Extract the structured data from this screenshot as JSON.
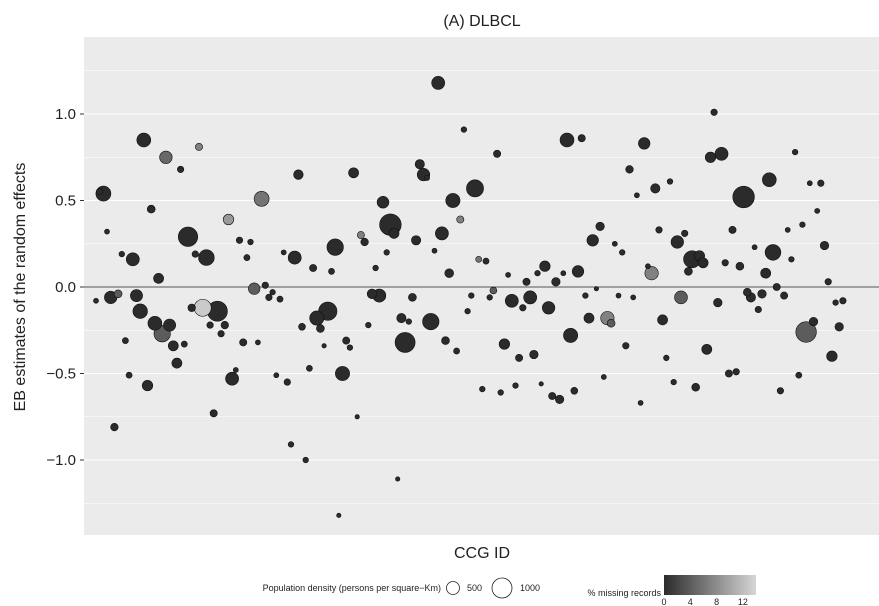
{
  "chart_data": {
    "type": "scatter",
    "title": "(A) DLBCL",
    "xlabel": "CCG ID",
    "ylabel": "EB estimates of the random effects",
    "ylim": [
      -1.38,
      1.45
    ],
    "yticks": [
      1.0,
      0.5,
      0.0,
      -0.5,
      -1.0
    ],
    "ytick_labels": [
      "1.0",
      "0.5",
      "0.0",
      "−0.5",
      "−1.0"
    ],
    "grid": true,
    "reference_line_y": 0,
    "x_index_range": [
      1,
      210
    ],
    "size_legend": {
      "title": "Population density (persons per square−Km)",
      "entries": [
        {
          "label": "500",
          "value": 500
        },
        {
          "label": "1000",
          "value": 1000
        }
      ]
    },
    "color_legend": {
      "title": "% missing records",
      "tick_labels": [
        "0",
        "4",
        "8",
        "12"
      ],
      "range": [
        0,
        14
      ],
      "colors": [
        "#2b2b2b",
        "#d6d6d6"
      ]
    },
    "points": [
      {
        "x": 1,
        "y": -0.08,
        "size": 30,
        "m": 0
      },
      {
        "x": 2,
        "y": 0.55,
        "size": 60,
        "m": 0
      },
      {
        "x": 3,
        "y": 0.54,
        "size": 450,
        "m": 0
      },
      {
        "x": 4,
        "y": 0.32,
        "size": 30,
        "m": 0
      },
      {
        "x": 5,
        "y": -0.06,
        "size": 300,
        "m": 0
      },
      {
        "x": 6,
        "y": -0.81,
        "size": 90,
        "m": 0
      },
      {
        "x": 7,
        "y": -0.04,
        "size": 100,
        "m": 4
      },
      {
        "x": 8,
        "y": 0.19,
        "size": 40,
        "m": 0
      },
      {
        "x": 9,
        "y": -0.31,
        "size": 50,
        "m": 0
      },
      {
        "x": 10,
        "y": -0.51,
        "size": 50,
        "m": 0
      },
      {
        "x": 11,
        "y": 0.16,
        "size": 330,
        "m": 0
      },
      {
        "x": 12,
        "y": -0.05,
        "size": 280,
        "m": 0
      },
      {
        "x": 13,
        "y": -0.14,
        "size": 420,
        "m": 0
      },
      {
        "x": 14,
        "y": 0.85,
        "size": 380,
        "m": 0
      },
      {
        "x": 15,
        "y": -0.57,
        "size": 200,
        "m": 0
      },
      {
        "x": 16,
        "y": 0.45,
        "size": 100,
        "m": 0
      },
      {
        "x": 17,
        "y": -0.21,
        "size": 380,
        "m": 0
      },
      {
        "x": 18,
        "y": 0.05,
        "size": 180,
        "m": 0
      },
      {
        "x": 19,
        "y": -0.27,
        "size": 550,
        "m": 4
      },
      {
        "x": 20,
        "y": 0.75,
        "size": 300,
        "m": 5
      },
      {
        "x": 21,
        "y": -0.22,
        "size": 280,
        "m": 0
      },
      {
        "x": 22,
        "y": -0.34,
        "size": 180,
        "m": 0
      },
      {
        "x": 23,
        "y": -0.44,
        "size": 180,
        "m": 0
      },
      {
        "x": 24,
        "y": 0.68,
        "size": 60,
        "m": 0
      },
      {
        "x": 25,
        "y": -0.33,
        "size": 50,
        "m": 0
      },
      {
        "x": 26,
        "y": 0.29,
        "size": 800,
        "m": 0
      },
      {
        "x": 27,
        "y": -0.12,
        "size": 90,
        "m": 0
      },
      {
        "x": 28,
        "y": 0.19,
        "size": 60,
        "m": 0
      },
      {
        "x": 29,
        "y": 0.81,
        "size": 80,
        "m": 7
      },
      {
        "x": 30,
        "y": -0.12,
        "size": 600,
        "m": 13
      },
      {
        "x": 31,
        "y": 0.17,
        "size": 500,
        "m": 0
      },
      {
        "x": 32,
        "y": -0.22,
        "size": 60,
        "m": 0
      },
      {
        "x": 33,
        "y": -0.73,
        "size": 80,
        "m": 0
      },
      {
        "x": 34,
        "y": -0.14,
        "size": 850,
        "m": 0
      },
      {
        "x": 35,
        "y": -0.27,
        "size": 60,
        "m": 0
      },
      {
        "x": 36,
        "y": -0.22,
        "size": 90,
        "m": 0
      },
      {
        "x": 37,
        "y": 0.39,
        "size": 200,
        "m": 9
      },
      {
        "x": 38,
        "y": -0.53,
        "size": 330,
        "m": 0
      },
      {
        "x": 39,
        "y": -0.48,
        "size": 30,
        "m": 0
      },
      {
        "x": 40,
        "y": 0.27,
        "size": 60,
        "m": 0
      },
      {
        "x": 41,
        "y": -0.32,
        "size": 80,
        "m": 0
      },
      {
        "x": 42,
        "y": 0.17,
        "size": 50,
        "m": 0
      },
      {
        "x": 43,
        "y": 0.26,
        "size": 40,
        "m": 0
      },
      {
        "x": 44,
        "y": -0.01,
        "size": 250,
        "m": 4
      },
      {
        "x": 45,
        "y": -0.32,
        "size": 30,
        "m": 0
      },
      {
        "x": 46,
        "y": 0.51,
        "size": 450,
        "m": 6
      },
      {
        "x": 47,
        "y": 0.01,
        "size": 60,
        "m": 0
      },
      {
        "x": 48,
        "y": -0.06,
        "size": 60,
        "m": 0
      },
      {
        "x": 49,
        "y": -0.03,
        "size": 40,
        "m": 0
      },
      {
        "x": 50,
        "y": -0.51,
        "size": 30,
        "m": 0
      },
      {
        "x": 51,
        "y": -0.07,
        "size": 50,
        "m": 0
      },
      {
        "x": 52,
        "y": 0.2,
        "size": 30,
        "m": 0
      },
      {
        "x": 53,
        "y": -0.55,
        "size": 60,
        "m": 0
      },
      {
        "x": 54,
        "y": -0.91,
        "size": 40,
        "m": 0
      },
      {
        "x": 55,
        "y": 0.17,
        "size": 330,
        "m": 0
      },
      {
        "x": 56,
        "y": 0.65,
        "size": 160,
        "m": 0
      },
      {
        "x": 57,
        "y": -0.23,
        "size": 70,
        "m": 0
      },
      {
        "x": 58,
        "y": -1.0,
        "size": 40,
        "m": 0
      },
      {
        "x": 59,
        "y": -0.47,
        "size": 50,
        "m": 0
      },
      {
        "x": 60,
        "y": 0.11,
        "size": 80,
        "m": 0
      },
      {
        "x": 61,
        "y": -0.18,
        "size": 400,
        "m": 0
      },
      {
        "x": 62,
        "y": -0.24,
        "size": 100,
        "m": 0
      },
      {
        "x": 63,
        "y": -0.34,
        "size": 20,
        "m": 0
      },
      {
        "x": 64,
        "y": -0.14,
        "size": 700,
        "m": 0
      },
      {
        "x": 65,
        "y": 0.09,
        "size": 50,
        "m": 0
      },
      {
        "x": 66,
        "y": 0.23,
        "size": 550,
        "m": 0
      },
      {
        "x": 67,
        "y": -1.32,
        "size": 20,
        "m": 0
      },
      {
        "x": 68,
        "y": -0.5,
        "size": 400,
        "m": 0
      },
      {
        "x": 69,
        "y": -0.31,
        "size": 80,
        "m": 0
      },
      {
        "x": 70,
        "y": -0.35,
        "size": 40,
        "m": 0
      },
      {
        "x": 71,
        "y": 0.66,
        "size": 180,
        "m": 0
      },
      {
        "x": 72,
        "y": -0.75,
        "size": 20,
        "m": 0
      },
      {
        "x": 73,
        "y": 0.3,
        "size": 80,
        "m": 7
      },
      {
        "x": 74,
        "y": 0.26,
        "size": 90,
        "m": 0
      },
      {
        "x": 75,
        "y": -0.22,
        "size": 40,
        "m": 0
      },
      {
        "x": 76,
        "y": -0.04,
        "size": 160,
        "m": 0
      },
      {
        "x": 77,
        "y": 0.11,
        "size": 40,
        "m": 0
      },
      {
        "x": 78,
        "y": -0.05,
        "size": 330,
        "m": 0
      },
      {
        "x": 79,
        "y": 0.49,
        "size": 260,
        "m": 0
      },
      {
        "x": 80,
        "y": 0.2,
        "size": 40,
        "m": 0
      },
      {
        "x": 81,
        "y": 0.36,
        "size": 1000,
        "m": 0
      },
      {
        "x": 82,
        "y": 0.31,
        "size": 180,
        "m": 0
      },
      {
        "x": 83,
        "y": -1.11,
        "size": 20,
        "m": 0
      },
      {
        "x": 84,
        "y": -0.18,
        "size": 150,
        "m": 0
      },
      {
        "x": 85,
        "y": -0.32,
        "size": 850,
        "m": 0
      },
      {
        "x": 86,
        "y": -0.2,
        "size": 40,
        "m": 0
      },
      {
        "x": 87,
        "y": -0.06,
        "size": 100,
        "m": 0
      },
      {
        "x": 88,
        "y": 0.27,
        "size": 150,
        "m": 0
      },
      {
        "x": 89,
        "y": 0.71,
        "size": 150,
        "m": 0
      },
      {
        "x": 90,
        "y": 0.65,
        "size": 300,
        "m": 0
      },
      {
        "x": 91,
        "y": 0.63,
        "size": 30,
        "m": 0
      },
      {
        "x": 92,
        "y": -0.2,
        "size": 550,
        "m": 0
      },
      {
        "x": 93,
        "y": 0.21,
        "size": 30,
        "m": 0
      },
      {
        "x": 94,
        "y": 1.18,
        "size": 330,
        "m": 0
      },
      {
        "x": 95,
        "y": 0.31,
        "size": 330,
        "m": 0
      },
      {
        "x": 96,
        "y": -0.31,
        "size": 100,
        "m": 0
      },
      {
        "x": 97,
        "y": 0.08,
        "size": 130,
        "m": 0
      },
      {
        "x": 98,
        "y": 0.5,
        "size": 400,
        "m": 0
      },
      {
        "x": 99,
        "y": -0.37,
        "size": 50,
        "m": 0
      },
      {
        "x": 100,
        "y": 0.39,
        "size": 80,
        "m": 7
      },
      {
        "x": 101,
        "y": 0.91,
        "size": 40,
        "m": 0
      },
      {
        "x": 102,
        "y": -0.14,
        "size": 40,
        "m": 0
      },
      {
        "x": 103,
        "y": -0.05,
        "size": 40,
        "m": 0
      },
      {
        "x": 104,
        "y": 0.57,
        "size": 600,
        "m": 0
      },
      {
        "x": 105,
        "y": 0.16,
        "size": 50,
        "m": 6
      },
      {
        "x": 106,
        "y": -0.59,
        "size": 40,
        "m": 0
      },
      {
        "x": 107,
        "y": 0.15,
        "size": 50,
        "m": 0
      },
      {
        "x": 108,
        "y": -0.06,
        "size": 40,
        "m": 0
      },
      {
        "x": 109,
        "y": -0.02,
        "size": 70,
        "m": 4
      },
      {
        "x": 110,
        "y": 0.77,
        "size": 80,
        "m": 0
      },
      {
        "x": 111,
        "y": -0.61,
        "size": 40,
        "m": 0
      },
      {
        "x": 112,
        "y": -0.33,
        "size": 200,
        "m": 0
      },
      {
        "x": 113,
        "y": 0.07,
        "size": 30,
        "m": 0
      },
      {
        "x": 114,
        "y": -0.08,
        "size": 330,
        "m": 0
      },
      {
        "x": 115,
        "y": -0.57,
        "size": 40,
        "m": 0
      },
      {
        "x": 116,
        "y": -0.41,
        "size": 80,
        "m": 0
      },
      {
        "x": 117,
        "y": -0.12,
        "size": 60,
        "m": 0
      },
      {
        "x": 118,
        "y": 0.03,
        "size": 80,
        "m": 0
      },
      {
        "x": 119,
        "y": -0.06,
        "size": 330,
        "m": 0
      },
      {
        "x": 120,
        "y": -0.39,
        "size": 120,
        "m": 0
      },
      {
        "x": 121,
        "y": 0.08,
        "size": 40,
        "m": 0
      },
      {
        "x": 122,
        "y": -0.56,
        "size": 20,
        "m": 0
      },
      {
        "x": 123,
        "y": 0.12,
        "size": 200,
        "m": 0
      },
      {
        "x": 124,
        "y": -0.12,
        "size": 300,
        "m": 0
      },
      {
        "x": 125,
        "y": -0.63,
        "size": 80,
        "m": 0
      },
      {
        "x": 126,
        "y": 0.03,
        "size": 120,
        "m": 0
      },
      {
        "x": 127,
        "y": -0.65,
        "size": 120,
        "m": 0
      },
      {
        "x": 128,
        "y": 0.08,
        "size": 30,
        "m": 0
      },
      {
        "x": 129,
        "y": 0.85,
        "size": 380,
        "m": 0
      },
      {
        "x": 130,
        "y": -0.28,
        "size": 400,
        "m": 0
      },
      {
        "x": 131,
        "y": -0.6,
        "size": 70,
        "m": 0
      },
      {
        "x": 132,
        "y": 0.09,
        "size": 250,
        "m": 0
      },
      {
        "x": 133,
        "y": 0.86,
        "size": 80,
        "m": 0
      },
      {
        "x": 134,
        "y": -0.05,
        "size": 40,
        "m": 0
      },
      {
        "x": 135,
        "y": -0.18,
        "size": 180,
        "m": 0
      },
      {
        "x": 136,
        "y": 0.27,
        "size": 250,
        "m": 0
      },
      {
        "x": 137,
        "y": -0.01,
        "size": 20,
        "m": 0
      },
      {
        "x": 138,
        "y": 0.35,
        "size": 120,
        "m": 0
      },
      {
        "x": 139,
        "y": -0.52,
        "size": 30,
        "m": 0
      },
      {
        "x": 140,
        "y": -0.18,
        "size": 350,
        "m": 7
      },
      {
        "x": 141,
        "y": -0.21,
        "size": 100,
        "m": 4
      },
      {
        "x": 142,
        "y": 0.25,
        "size": 30,
        "m": 0
      },
      {
        "x": 143,
        "y": -0.05,
        "size": 30,
        "m": 0
      },
      {
        "x": 144,
        "y": 0.2,
        "size": 40,
        "m": 0
      },
      {
        "x": 145,
        "y": -0.34,
        "size": 60,
        "m": 0
      },
      {
        "x": 146,
        "y": 0.68,
        "size": 90,
        "m": 0
      },
      {
        "x": 147,
        "y": -0.06,
        "size": 30,
        "m": 0
      },
      {
        "x": 148,
        "y": 0.53,
        "size": 30,
        "m": 0
      },
      {
        "x": 149,
        "y": -0.67,
        "size": 30,
        "m": 0
      },
      {
        "x": 150,
        "y": 0.83,
        "size": 250,
        "m": 0
      },
      {
        "x": 151,
        "y": 0.12,
        "size": 30,
        "m": 0
      },
      {
        "x": 152,
        "y": 0.08,
        "size": 350,
        "m": 7
      },
      {
        "x": 153,
        "y": 0.57,
        "size": 150,
        "m": 0
      },
      {
        "x": 154,
        "y": 0.33,
        "size": 60,
        "m": 0
      },
      {
        "x": 155,
        "y": -0.19,
        "size": 180,
        "m": 0
      },
      {
        "x": 156,
        "y": -0.41,
        "size": 40,
        "m": 0
      },
      {
        "x": 157,
        "y": 0.61,
        "size": 40,
        "m": 0
      },
      {
        "x": 158,
        "y": -0.55,
        "size": 40,
        "m": 0
      },
      {
        "x": 159,
        "y": 0.26,
        "size": 300,
        "m": 0
      },
      {
        "x": 160,
        "y": -0.06,
        "size": 320,
        "m": 4
      },
      {
        "x": 161,
        "y": 0.31,
        "size": 60,
        "m": 0
      },
      {
        "x": 162,
        "y": 0.09,
        "size": 100,
        "m": 0
      },
      {
        "x": 163,
        "y": 0.16,
        "size": 600,
        "m": 0
      },
      {
        "x": 164,
        "y": -0.58,
        "size": 100,
        "m": 0
      },
      {
        "x": 165,
        "y": 0.18,
        "size": 200,
        "m": 0
      },
      {
        "x": 166,
        "y": 0.14,
        "size": 180,
        "m": 0
      },
      {
        "x": 167,
        "y": -0.36,
        "size": 180,
        "m": 0
      },
      {
        "x": 168,
        "y": 0.75,
        "size": 200,
        "m": 0
      },
      {
        "x": 169,
        "y": 1.01,
        "size": 60,
        "m": 0
      },
      {
        "x": 170,
        "y": -0.09,
        "size": 120,
        "m": 0
      },
      {
        "x": 171,
        "y": 0.77,
        "size": 330,
        "m": 0
      },
      {
        "x": 172,
        "y": 0.14,
        "size": 60,
        "m": 0
      },
      {
        "x": 173,
        "y": -0.5,
        "size": 80,
        "m": 0
      },
      {
        "x": 174,
        "y": 0.33,
        "size": 80,
        "m": 0
      },
      {
        "x": 175,
        "y": -0.49,
        "size": 60,
        "m": 0
      },
      {
        "x": 176,
        "y": 0.12,
        "size": 100,
        "m": 0
      },
      {
        "x": 177,
        "y": 0.52,
        "size": 1000,
        "m": 0
      },
      {
        "x": 178,
        "y": -0.03,
        "size": 100,
        "m": 0
      },
      {
        "x": 179,
        "y": -0.06,
        "size": 150,
        "m": 0
      },
      {
        "x": 180,
        "y": 0.23,
        "size": 30,
        "m": 0
      },
      {
        "x": 181,
        "y": -0.13,
        "size": 60,
        "m": 0
      },
      {
        "x": 182,
        "y": -0.04,
        "size": 120,
        "m": 0
      },
      {
        "x": 183,
        "y": 0.08,
        "size": 180,
        "m": 0
      },
      {
        "x": 184,
        "y": 0.62,
        "size": 380,
        "m": 0
      },
      {
        "x": 185,
        "y": 0.2,
        "size": 500,
        "m": 0
      },
      {
        "x": 186,
        "y": 0.0,
        "size": 80,
        "m": 0
      },
      {
        "x": 187,
        "y": -0.6,
        "size": 60,
        "m": 0
      },
      {
        "x": 188,
        "y": -0.05,
        "size": 80,
        "m": 0
      },
      {
        "x": 189,
        "y": 0.33,
        "size": 30,
        "m": 0
      },
      {
        "x": 190,
        "y": 0.16,
        "size": 40,
        "m": 0
      },
      {
        "x": 191,
        "y": 0.78,
        "size": 40,
        "m": 0
      },
      {
        "x": 192,
        "y": -0.51,
        "size": 50,
        "m": 0
      },
      {
        "x": 193,
        "y": 0.36,
        "size": 40,
        "m": 0
      },
      {
        "x": 194,
        "y": -0.26,
        "size": 900,
        "m": 4
      },
      {
        "x": 195,
        "y": 0.6,
        "size": 30,
        "m": 0
      },
      {
        "x": 196,
        "y": -0.2,
        "size": 120,
        "m": 0
      },
      {
        "x": 197,
        "y": 0.44,
        "size": 30,
        "m": 0
      },
      {
        "x": 198,
        "y": 0.6,
        "size": 60,
        "m": 0
      },
      {
        "x": 199,
        "y": 0.24,
        "size": 120,
        "m": 0
      },
      {
        "x": 200,
        "y": 0.03,
        "size": 60,
        "m": 0
      },
      {
        "x": 201,
        "y": -0.4,
        "size": 200,
        "m": 0
      },
      {
        "x": 202,
        "y": -0.09,
        "size": 40,
        "m": 0
      },
      {
        "x": 203,
        "y": -0.23,
        "size": 120,
        "m": 0
      },
      {
        "x": 204,
        "y": -0.08,
        "size": 60,
        "m": 0
      }
    ]
  }
}
